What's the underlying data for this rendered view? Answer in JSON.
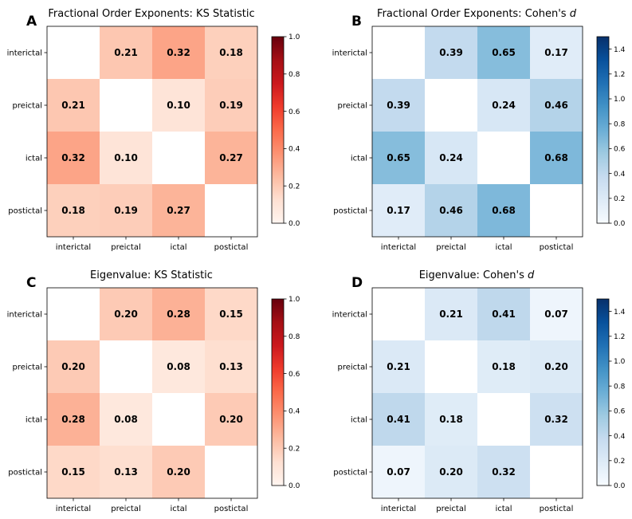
{
  "chart_data": [
    {
      "type": "heatmap",
      "panel_label": "A",
      "title_parts": [
        {
          "text": "Fractional Order Exponents: KS Statistic",
          "italic": false
        }
      ],
      "row_labels": [
        "interictal",
        "preictal",
        "ictal",
        "postictal"
      ],
      "col_labels": [
        "interictal",
        "preictal",
        "ictal",
        "postictal"
      ],
      "values": [
        [
          null,
          0.21,
          0.32,
          0.18
        ],
        [
          0.21,
          null,
          0.1,
          0.19
        ],
        [
          0.32,
          0.1,
          null,
          0.27
        ],
        [
          0.18,
          0.19,
          0.27,
          null
        ]
      ],
      "value_labels": [
        [
          "",
          "0.21",
          "0.32",
          "0.18"
        ],
        [
          "0.21",
          "",
          "0.10",
          "0.19"
        ],
        [
          "0.32",
          "0.10",
          "",
          "0.27"
        ],
        [
          "0.18",
          "0.19",
          "0.27",
          ""
        ]
      ],
      "colormap": "Reds",
      "colorbar": {
        "range": [
          0.0,
          1.0
        ],
        "ticks": [
          0.0,
          0.2,
          0.4,
          0.6,
          0.8,
          1.0
        ],
        "tick_labels": [
          "0.0",
          "0.2",
          "0.4",
          "0.6",
          "0.8",
          "1.0"
        ]
      }
    },
    {
      "type": "heatmap",
      "panel_label": "B",
      "title_parts": [
        {
          "text": "Fractional Order Exponents: Cohen's ",
          "italic": false
        },
        {
          "text": "d",
          "italic": true
        }
      ],
      "row_labels": [
        "interictal",
        "preictal",
        "ictal",
        "postictal"
      ],
      "col_labels": [
        "interictal",
        "preictal",
        "ictal",
        "postictal"
      ],
      "values": [
        [
          null,
          0.39,
          0.65,
          0.17
        ],
        [
          0.39,
          null,
          0.24,
          0.46
        ],
        [
          0.65,
          0.24,
          null,
          0.68
        ],
        [
          0.17,
          0.46,
          0.68,
          null
        ]
      ],
      "value_labels": [
        [
          "",
          "0.39",
          "0.65",
          "0.17"
        ],
        [
          "0.39",
          "",
          "0.24",
          "0.46"
        ],
        [
          "0.65",
          "0.24",
          "",
          "0.68"
        ],
        [
          "0.17",
          "0.46",
          "0.68",
          ""
        ]
      ],
      "colormap": "Blues",
      "colorbar": {
        "range": [
          0.0,
          1.5
        ],
        "ticks": [
          0.0,
          0.2,
          0.4,
          0.6,
          0.8,
          1.0,
          1.2,
          1.4
        ],
        "tick_labels": [
          "0.0",
          "0.2",
          "0.4",
          "0.6",
          "0.8",
          "1.0",
          "1.2",
          "1.4"
        ]
      }
    },
    {
      "type": "heatmap",
      "panel_label": "C",
      "title_parts": [
        {
          "text": "Eigenvalue: KS Statistic",
          "italic": false
        }
      ],
      "row_labels": [
        "interictal",
        "preictal",
        "ictal",
        "postictal"
      ],
      "col_labels": [
        "interictal",
        "preictal",
        "ictal",
        "postictal"
      ],
      "values": [
        [
          null,
          0.2,
          0.28,
          0.15
        ],
        [
          0.2,
          null,
          0.08,
          0.13
        ],
        [
          0.28,
          0.08,
          null,
          0.2
        ],
        [
          0.15,
          0.13,
          0.2,
          null
        ]
      ],
      "value_labels": [
        [
          "",
          "0.20",
          "0.28",
          "0.15"
        ],
        [
          "0.20",
          "",
          "0.08",
          "0.13"
        ],
        [
          "0.28",
          "0.08",
          "",
          "0.20"
        ],
        [
          "0.15",
          "0.13",
          "0.20",
          ""
        ]
      ],
      "colormap": "Reds",
      "colorbar": {
        "range": [
          0.0,
          1.0
        ],
        "ticks": [
          0.0,
          0.2,
          0.4,
          0.6,
          0.8,
          1.0
        ],
        "tick_labels": [
          "0.0",
          "0.2",
          "0.4",
          "0.6",
          "0.8",
          "1.0"
        ]
      }
    },
    {
      "type": "heatmap",
      "panel_label": "D",
      "title_parts": [
        {
          "text": "Eigenvalue: Cohen's ",
          "italic": false
        },
        {
          "text": "d",
          "italic": true
        }
      ],
      "row_labels": [
        "interictal",
        "preictal",
        "ictal",
        "postictal"
      ],
      "col_labels": [
        "interictal",
        "preictal",
        "ictal",
        "postictal"
      ],
      "values": [
        [
          null,
          0.21,
          0.41,
          0.07
        ],
        [
          0.21,
          null,
          0.18,
          0.2
        ],
        [
          0.41,
          0.18,
          null,
          0.32
        ],
        [
          0.07,
          0.2,
          0.32,
          null
        ]
      ],
      "value_labels": [
        [
          "",
          "0.21",
          "0.41",
          "0.07"
        ],
        [
          "0.21",
          "",
          "0.18",
          "0.20"
        ],
        [
          "0.41",
          "0.18",
          "",
          "0.32"
        ],
        [
          "0.07",
          "0.20",
          "0.32",
          ""
        ]
      ],
      "colormap": "Blues",
      "colorbar": {
        "range": [
          0.0,
          1.5
        ],
        "ticks": [
          0.0,
          0.2,
          0.4,
          0.6,
          0.8,
          1.0,
          1.2,
          1.4
        ],
        "tick_labels": [
          "0.0",
          "0.2",
          "0.4",
          "0.6",
          "0.8",
          "1.0",
          "1.2",
          "1.4"
        ]
      }
    }
  ],
  "colormaps": {
    "Reds": [
      "#fff5f0",
      "#fee0d2",
      "#fcbba1",
      "#fc9272",
      "#fb6a4a",
      "#ef3b2c",
      "#cb181d",
      "#a50f15",
      "#67000d"
    ],
    "Blues": [
      "#f7fbff",
      "#deebf7",
      "#c6dbef",
      "#9ecae1",
      "#6baed6",
      "#4292c6",
      "#2171b5",
      "#08519c",
      "#08306b"
    ]
  }
}
